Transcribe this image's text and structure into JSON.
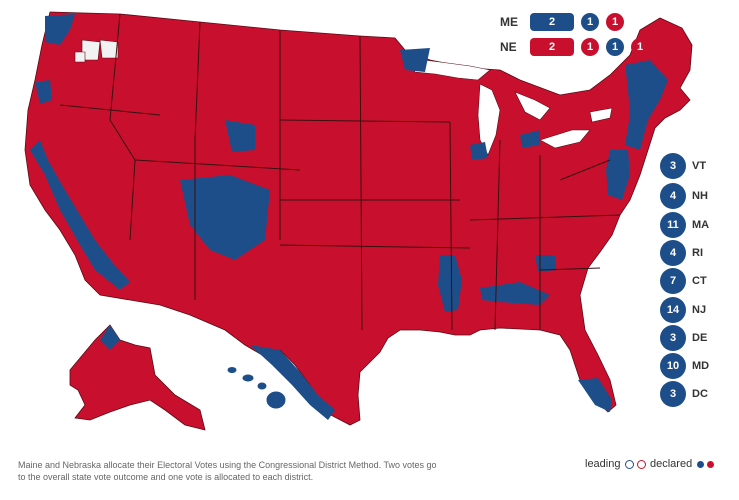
{
  "colors": {
    "rep": "#c8102e",
    "dem": "#1d4e89",
    "border": "#3a1010",
    "water": "#ffffff",
    "undecided": "#f2f2f2"
  },
  "split_states": {
    "me": {
      "label": "ME",
      "statewide": "2",
      "districts": [
        "1",
        "1"
      ],
      "statewide_party": "dem",
      "district_parties": [
        "dem",
        "rep"
      ]
    },
    "ne": {
      "label": "NE",
      "statewide": "2",
      "districts": [
        "1",
        "1",
        "1"
      ],
      "statewide_party": "rep",
      "district_parties": [
        "rep",
        "dem",
        "rep"
      ]
    }
  },
  "small_states": [
    {
      "ev": "3",
      "abbr": "VT"
    },
    {
      "ev": "4",
      "abbr": "NH"
    },
    {
      "ev": "11",
      "abbr": "MA"
    },
    {
      "ev": "4",
      "abbr": "RI"
    },
    {
      "ev": "7",
      "abbr": "CT"
    },
    {
      "ev": "14",
      "abbr": "NJ"
    },
    {
      "ev": "3",
      "abbr": "DE"
    },
    {
      "ev": "10",
      "abbr": "MD"
    },
    {
      "ev": "3",
      "abbr": "DC"
    }
  ],
  "footnote": "Maine and Nebraska allocate their Electoral Votes using the Congressional District Method. Two votes go to the overall state vote outcome and one vote is allocated to each district.",
  "legend": {
    "leading": "leading",
    "declared": "declared"
  }
}
